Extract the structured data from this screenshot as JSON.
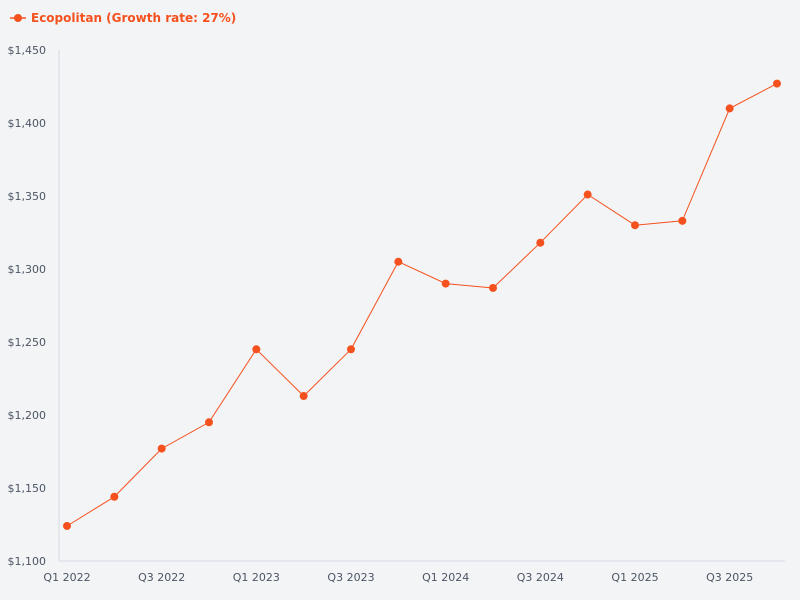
{
  "chart_data": {
    "type": "line",
    "title": "",
    "xlabel": "",
    "ylabel": "",
    "categories": [
      "Q1 2022",
      "Q2 2022",
      "Q3 2022",
      "Q4 2022",
      "Q1 2023",
      "Q2 2023",
      "Q3 2023",
      "Q4 2023",
      "Q1 2024",
      "Q2 2024",
      "Q3 2024",
      "Q4 2024",
      "Q1 2025",
      "Q2 2025",
      "Q3 2025",
      "Q4 2025"
    ],
    "x_tick_labels": [
      "Q1 2022",
      "Q3 2022",
      "Q1 2023",
      "Q3 2023",
      "Q1 2024",
      "Q3 2024",
      "Q1 2025",
      "Q3 2025"
    ],
    "ylim": [
      1100,
      1450
    ],
    "y_ticks": [
      1100,
      1150,
      1200,
      1250,
      1300,
      1350,
      1400,
      1450
    ],
    "y_tick_labels": [
      "$1,100",
      "$1,150",
      "$1,200",
      "$1,250",
      "$1,300",
      "$1,350",
      "$1,400",
      "$1,450"
    ],
    "series": [
      {
        "name": "Ecopolitan (Growth rate: 27%)",
        "color": "#f4511e",
        "values": [
          1124,
          1144,
          1177,
          1195,
          1245,
          1213,
          1245,
          1305,
          1290,
          1287,
          1318,
          1351,
          1330,
          1333,
          1410,
          1427
        ]
      }
    ],
    "grid": false,
    "legend_position": "top-left"
  }
}
